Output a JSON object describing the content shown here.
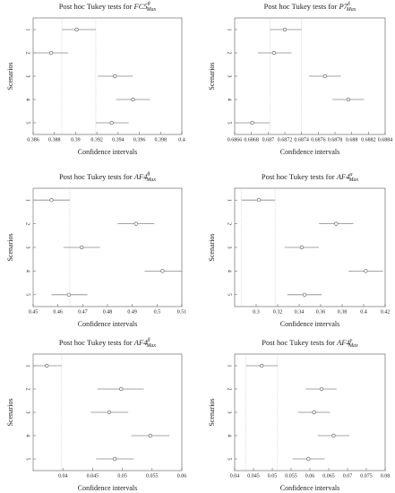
{
  "chart_data": [
    {
      "type": "interval",
      "title": "Post hoc Tukey tests for",
      "title_var": "FC5",
      "title_sup": "θ",
      "title_sub": "Max",
      "xlabel": "Confidence intervals",
      "ylabel": "Scenarios",
      "categories": [
        "1",
        "2",
        "3",
        "4",
        "5"
      ],
      "values": [
        0.3901,
        0.3877,
        0.3937,
        0.3954,
        0.3934
      ],
      "lower": [
        0.3887,
        0.3861,
        0.3921,
        0.3938,
        0.3919
      ],
      "upper": [
        0.3919,
        0.3893,
        0.3954,
        0.397,
        0.395
      ],
      "xlim": [
        0.386,
        0.4
      ],
      "xticks": [
        0.386,
        0.388,
        0.39,
        0.392,
        0.394,
        0.396,
        0.398,
        0.4
      ],
      "color": "#888888"
    },
    {
      "type": "interval",
      "title": "Post hoc Tukey tests for",
      "title_var": "P7",
      "title_sup": "δ",
      "title_sub": "Max",
      "xlabel": "Confidence intervals",
      "ylabel": "Scenarios",
      "categories": [
        "1",
        "2",
        "3",
        "4",
        "5"
      ],
      "values": [
        0.6872,
        0.68707,
        0.68768,
        0.68796,
        0.68681
      ],
      "lower": [
        0.68702,
        0.68688,
        0.68749,
        0.68777,
        0.68662
      ],
      "upper": [
        0.6874,
        0.68728,
        0.68787,
        0.68815,
        0.68702
      ],
      "xlim": [
        0.6866,
        0.6884
      ],
      "xticks": [
        0.6866,
        0.6868,
        0.687,
        0.6872,
        0.6874,
        0.6876,
        0.6878,
        0.688,
        0.6882,
        0.6884
      ],
      "color": "#888888"
    },
    {
      "type": "interval",
      "title": "Post hoc Tukey tests for",
      "title_var": "AF4",
      "title_sup": "θ",
      "title_sub": "Max",
      "xlabel": "Confidence intervals",
      "ylabel": "Scenarios",
      "categories": [
        "1",
        "2",
        "3",
        "4",
        "5"
      ],
      "values": [
        0.4574,
        0.4915,
        0.4696,
        0.5022,
        0.4644
      ],
      "lower": [
        0.45,
        0.4841,
        0.4622,
        0.495,
        0.4574
      ],
      "upper": [
        0.4648,
        0.4989,
        0.477,
        0.51,
        0.4719
      ],
      "xlim": [
        0.45,
        0.51
      ],
      "xticks": [
        0.45,
        0.46,
        0.47,
        0.48,
        0.49,
        0.5,
        0.51
      ],
      "color": "#888888"
    },
    {
      "type": "interval",
      "title": "Post hoc Tukey tests for",
      "title_var": "AF4",
      "title_sup": "α",
      "title_sub": "Max",
      "xlabel": "Confidence intervals",
      "ylabel": "Scenarios",
      "categories": [
        "1",
        "2",
        "3",
        "4",
        "5"
      ],
      "values": [
        0.3024,
        0.3744,
        0.3424,
        0.402,
        0.345
      ],
      "lower": [
        0.2864,
        0.3584,
        0.3264,
        0.386,
        0.329
      ],
      "upper": [
        0.3176,
        0.3904,
        0.3584,
        0.418,
        0.361
      ],
      "xlim": [
        0.28,
        0.42
      ],
      "xticks": [
        0.3,
        0.32,
        0.34,
        0.36,
        0.38,
        0.4,
        0.42
      ],
      "color": "#888888"
    },
    {
      "type": "interval",
      "title": "Post hoc Tukey tests for",
      "title_var": "AF4",
      "title_sup": "β",
      "title_sub": "Max",
      "xlabel": "Confidence intervals",
      "ylabel": "Scenarios",
      "categories": [
        "1",
        "2",
        "3",
        "4",
        "5"
      ],
      "values": [
        0.0373,
        0.0498,
        0.0478,
        0.0547,
        0.0487
      ],
      "lower": [
        0.035,
        0.0458,
        0.0447,
        0.0515,
        0.0456
      ],
      "upper": [
        0.0398,
        0.0536,
        0.051,
        0.0579,
        0.0519
      ],
      "xlim": [
        0.035,
        0.06
      ],
      "xticks": [
        0.04,
        0.045,
        0.05,
        0.055,
        0.06
      ],
      "color": "#888888"
    },
    {
      "type": "interval",
      "title": "Post hoc Tukey tests for",
      "title_var": "AF4",
      "title_sup": "γ",
      "title_sub": "Max",
      "xlabel": "Confidence intervals",
      "ylabel": "Scenarios",
      "categories": [
        "1",
        "2",
        "3",
        "4",
        "5"
      ],
      "values": [
        0.0472,
        0.0631,
        0.0611,
        0.0663,
        0.0596
      ],
      "lower": [
        0.043,
        0.0589,
        0.0569,
        0.0621,
        0.0554
      ],
      "upper": [
        0.0514,
        0.0671,
        0.0654,
        0.0705,
        0.0639
      ],
      "xlim": [
        0.04,
        0.08
      ],
      "xticks": [
        0.04,
        0.045,
        0.05,
        0.055,
        0.06,
        0.065,
        0.07,
        0.075,
        0.08
      ],
      "color": "#888888"
    }
  ]
}
